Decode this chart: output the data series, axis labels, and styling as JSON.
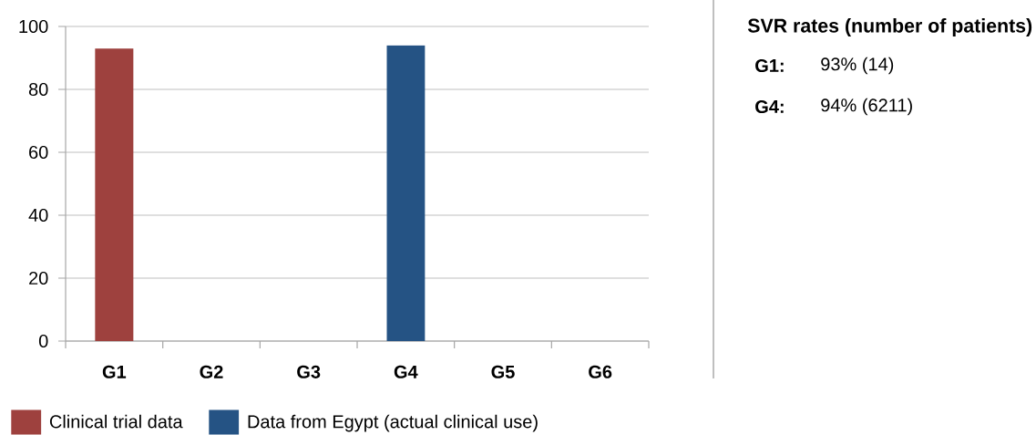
{
  "chart_data": [
    {
      "type": "bar",
      "categories": [
        "G1",
        "G2",
        "G3",
        "G4",
        "G5",
        "G6"
      ],
      "series": [
        {
          "name": "Clinical trial data",
          "color": "#9e413e",
          "values": [
            93,
            null,
            null,
            null,
            null,
            null
          ]
        },
        {
          "name": "Data from Egypt (actual clinical use)",
          "color": "#255384",
          "values": [
            null,
            null,
            null,
            94,
            null,
            null
          ]
        }
      ],
      "ylim": [
        0,
        100
      ],
      "yticks": [
        0,
        20,
        40,
        60,
        80,
        100
      ],
      "grid": "y",
      "legend": "bottom"
    },
    {
      "type": "other",
      "title": "SVR rates (number of patients)",
      "annotations": [
        "G1:",
        "93% (14)",
        "G4:",
        "94% (6211)"
      ]
    }
  ]
}
